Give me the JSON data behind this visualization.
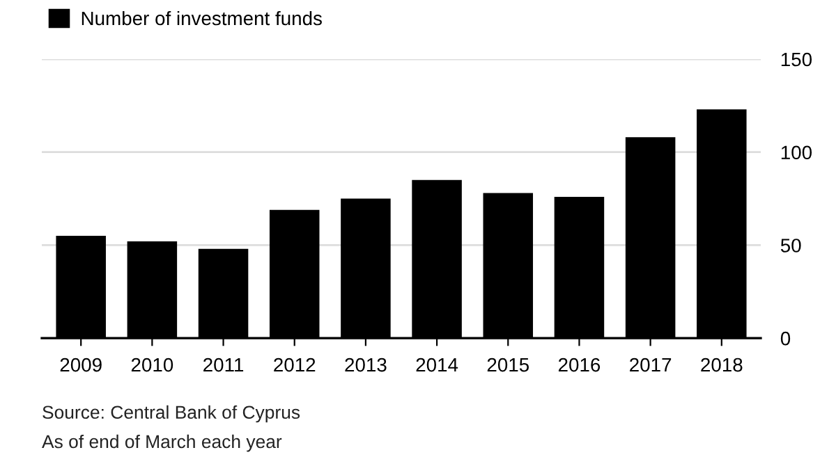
{
  "chart_data": {
    "type": "bar",
    "categories": [
      "2009",
      "2010",
      "2011",
      "2012",
      "2013",
      "2014",
      "2015",
      "2016",
      "2017",
      "2018"
    ],
    "series": [
      {
        "name": "Number of investment funds",
        "color": "#000000",
        "values": [
          55,
          52,
          48,
          69,
          75,
          85,
          78,
          76,
          108,
          123
        ]
      }
    ],
    "ylim": [
      0,
      150
    ],
    "yticks": [
      0,
      50,
      100,
      150
    ],
    "grid": "y",
    "legend": "top left",
    "annotations": [
      "Source: Central Bank of Cyprus",
      "As of end of March each year"
    ]
  }
}
